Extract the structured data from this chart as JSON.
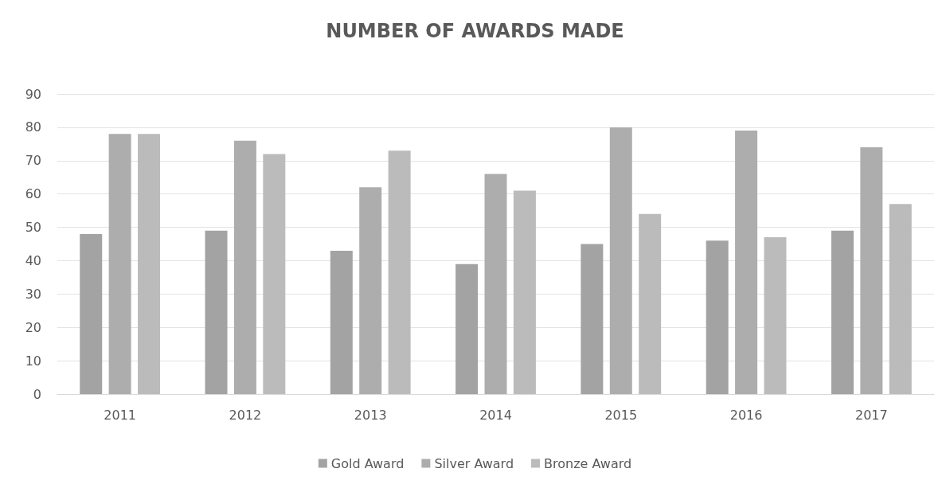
{
  "chart_data": {
    "type": "bar",
    "title": "NUMBER OF AWARDS MADE",
    "categories": [
      "2011",
      "2012",
      "2013",
      "2014",
      "2015",
      "2016",
      "2017"
    ],
    "series": [
      {
        "name": "Gold Award",
        "color": "#a3a3a3",
        "values": [
          48,
          49,
          43,
          39,
          45,
          46,
          49
        ]
      },
      {
        "name": "Silver Award",
        "color": "#adadad",
        "values": [
          78,
          76,
          62,
          66,
          80,
          79,
          74
        ]
      },
      {
        "name": "Bronze Award",
        "color": "#bbbbbb",
        "values": [
          78,
          72,
          73,
          61,
          54,
          47,
          57
        ]
      }
    ],
    "ylim": [
      0,
      90
    ],
    "yticks": [
      0,
      10,
      20,
      30,
      40,
      50,
      60,
      70,
      80,
      90
    ],
    "grid": "y",
    "legend": "bottom"
  }
}
